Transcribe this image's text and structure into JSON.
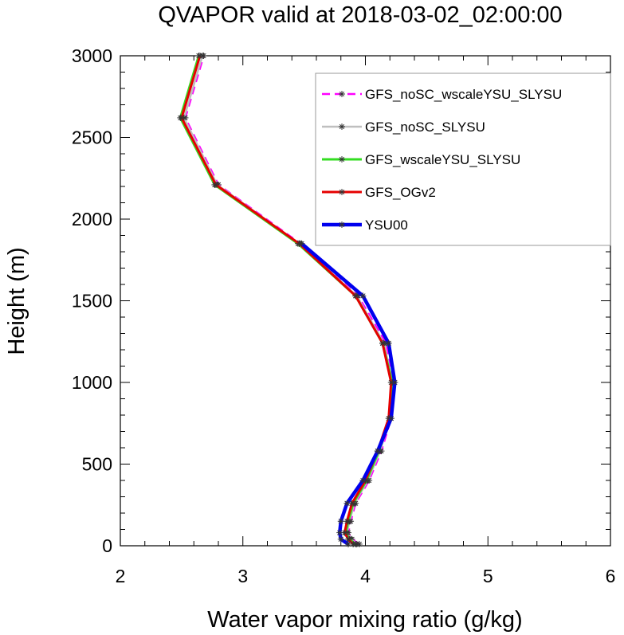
{
  "chart_data": {
    "type": "line",
    "title": "QVAPOR valid at 2018-03-02_02:00:00",
    "xlabel": "Water vapor mixing ratio (g/kg)",
    "ylabel": "Height (m)",
    "xlim": [
      2,
      6
    ],
    "ylim": [
      0,
      3000
    ],
    "xticks": [
      2,
      3,
      4,
      5,
      6
    ],
    "yticks": [
      0,
      500,
      1000,
      1500,
      2000,
      2500,
      3000
    ],
    "grid": false,
    "legend_position": "top-right",
    "marker": "asterisk",
    "series": [
      {
        "name": "GFS_noSC_wscaleYSU_SLYSU",
        "color": "#ff00ff",
        "dash": "dashed",
        "points": [
          {
            "x": 3.95,
            "y": 10
          },
          {
            "x": 3.89,
            "y": 40
          },
          {
            "x": 3.86,
            "y": 80
          },
          {
            "x": 3.88,
            "y": 150
          },
          {
            "x": 3.92,
            "y": 260
          },
          {
            "x": 4.03,
            "y": 400
          },
          {
            "x": 4.13,
            "y": 580
          },
          {
            "x": 4.21,
            "y": 780
          },
          {
            "x": 4.23,
            "y": 1000
          },
          {
            "x": 4.17,
            "y": 1240
          },
          {
            "x": 3.94,
            "y": 1530
          },
          {
            "x": 3.47,
            "y": 1850
          },
          {
            "x": 2.8,
            "y": 2210
          },
          {
            "x": 2.53,
            "y": 2620
          },
          {
            "x": 2.68,
            "y": 3000
          }
        ]
      },
      {
        "name": "GFS_noSC_SLYSU",
        "color": "#bfbfbf",
        "dash": "solid",
        "points": [
          {
            "x": 3.93,
            "y": 10
          },
          {
            "x": 3.88,
            "y": 40
          },
          {
            "x": 3.85,
            "y": 80
          },
          {
            "x": 3.87,
            "y": 150
          },
          {
            "x": 3.91,
            "y": 260
          },
          {
            "x": 4.02,
            "y": 400
          },
          {
            "x": 4.12,
            "y": 580
          },
          {
            "x": 4.2,
            "y": 780
          },
          {
            "x": 4.22,
            "y": 1000
          },
          {
            "x": 4.15,
            "y": 1240
          },
          {
            "x": 3.93,
            "y": 1530
          },
          {
            "x": 3.46,
            "y": 1850
          },
          {
            "x": 2.79,
            "y": 2210
          },
          {
            "x": 2.52,
            "y": 2620
          },
          {
            "x": 2.67,
            "y": 3000
          }
        ]
      },
      {
        "name": "GFS_wscaleYSU_SLYSU",
        "color": "#33dd22",
        "dash": "solid",
        "points": [
          {
            "x": 3.92,
            "y": 10
          },
          {
            "x": 3.87,
            "y": 40
          },
          {
            "x": 3.84,
            "y": 80
          },
          {
            "x": 3.86,
            "y": 150
          },
          {
            "x": 3.9,
            "y": 260
          },
          {
            "x": 4.01,
            "y": 400
          },
          {
            "x": 4.11,
            "y": 580
          },
          {
            "x": 4.2,
            "y": 780
          },
          {
            "x": 4.22,
            "y": 1000
          },
          {
            "x": 4.14,
            "y": 1240
          },
          {
            "x": 3.92,
            "y": 1530
          },
          {
            "x": 3.45,
            "y": 1850
          },
          {
            "x": 2.77,
            "y": 2210
          },
          {
            "x": 2.49,
            "y": 2620
          },
          {
            "x": 2.64,
            "y": 3000
          }
        ]
      },
      {
        "name": "GFS_OGv2",
        "color": "#e60000",
        "dash": "solid",
        "points": [
          {
            "x": 3.9,
            "y": 10
          },
          {
            "x": 3.86,
            "y": 40
          },
          {
            "x": 3.83,
            "y": 80
          },
          {
            "x": 3.85,
            "y": 150
          },
          {
            "x": 3.89,
            "y": 260
          },
          {
            "x": 4.0,
            "y": 400
          },
          {
            "x": 4.1,
            "y": 580
          },
          {
            "x": 4.19,
            "y": 780
          },
          {
            "x": 4.21,
            "y": 1000
          },
          {
            "x": 4.14,
            "y": 1240
          },
          {
            "x": 3.92,
            "y": 1530
          },
          {
            "x": 3.46,
            "y": 1850
          },
          {
            "x": 2.78,
            "y": 2210
          },
          {
            "x": 2.5,
            "y": 2620
          },
          {
            "x": 2.65,
            "y": 3000
          }
        ]
      },
      {
        "name": "YSU00",
        "color": "#0000ee",
        "dash": "solid",
        "points": [
          {
            "x": 3.86,
            "y": 10
          },
          {
            "x": 3.8,
            "y": 40
          },
          {
            "x": 3.79,
            "y": 80
          },
          {
            "x": 3.8,
            "y": 150
          },
          {
            "x": 3.85,
            "y": 260
          },
          {
            "x": 3.98,
            "y": 400
          },
          {
            "x": 4.1,
            "y": 580
          },
          {
            "x": 4.21,
            "y": 780
          },
          {
            "x": 4.24,
            "y": 1000
          },
          {
            "x": 4.19,
            "y": 1240
          },
          {
            "x": 3.98,
            "y": 1530
          },
          {
            "x": 3.48,
            "y": 1850
          }
        ]
      }
    ]
  }
}
